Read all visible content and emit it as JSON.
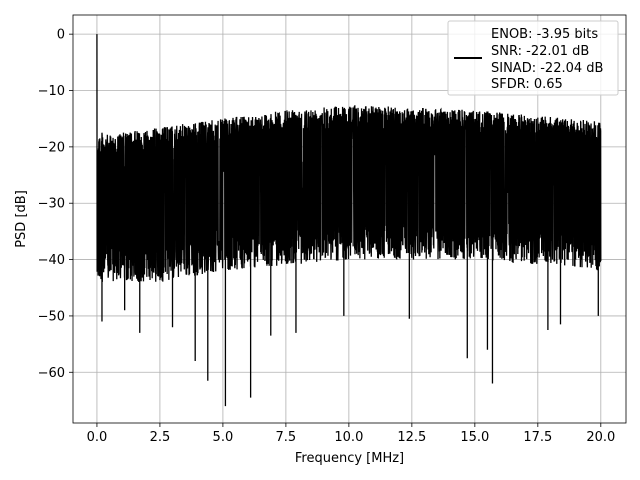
{
  "chart_data": {
    "type": "line",
    "title": "",
    "xlabel": "Frequency [MHz]",
    "ylabel": "PSD [dB]",
    "xlim": [
      -0.95,
      21.0
    ],
    "ylim": [
      -69.0,
      3.4
    ],
    "xticks": [
      0.0,
      2.5,
      5.0,
      7.5,
      10.0,
      12.5,
      15.0,
      17.5,
      20.0
    ],
    "xtick_labels": [
      "0.0",
      "2.5",
      "5.0",
      "7.5",
      "10.0",
      "12.5",
      "15.0",
      "17.5",
      "20.0"
    ],
    "yticks": [
      0,
      -10,
      -20,
      -30,
      -40,
      -50,
      -60
    ],
    "ytick_labels": [
      "0",
      "−10",
      "−20",
      "−30",
      "−40",
      "−50",
      "−60"
    ],
    "grid": true,
    "legend_position": "top-right",
    "legend_lines": [
      "ENOB: -3.95 bits",
      "SNR: -22.01 dB",
      "SINAD: -22.04 dB",
      "SFDR: 0.65"
    ],
    "line_color": "#000000",
    "series": [
      {
        "x_range": [
          0.0,
          20.0
        ],
        "points": 3000,
        "peak": {
          "x": 0.0,
          "y": 0.0
        },
        "upper_envelope_dB": [
          [
            0.0,
            -17
          ],
          [
            0.5,
            -18
          ],
          [
            1.0,
            -17.5
          ],
          [
            2.5,
            -16.5
          ],
          [
            5.0,
            -15
          ],
          [
            7.5,
            -13.5
          ],
          [
            10.0,
            -12.5
          ],
          [
            12.5,
            -13
          ],
          [
            15.0,
            -13.5
          ],
          [
            17.5,
            -14.5
          ],
          [
            20.0,
            -15.5
          ]
        ],
        "lower_envelope_dB": [
          [
            0.0,
            -44
          ],
          [
            2.5,
            -44
          ],
          [
            5.0,
            -42
          ],
          [
            10.0,
            -40
          ],
          [
            15.0,
            -40
          ],
          [
            20.0,
            -42
          ]
        ],
        "deep_dips": [
          [
            0.2,
            -51
          ],
          [
            1.1,
            -49
          ],
          [
            1.7,
            -53
          ],
          [
            3.0,
            -52
          ],
          [
            3.9,
            -58
          ],
          [
            4.4,
            -61.5
          ],
          [
            5.1,
            -66
          ],
          [
            6.1,
            -64.5
          ],
          [
            6.9,
            -53.5
          ],
          [
            7.9,
            -53
          ],
          [
            9.8,
            -50
          ],
          [
            12.4,
            -50.5
          ],
          [
            14.7,
            -57.5
          ],
          [
            15.5,
            -56
          ],
          [
            15.7,
            -62
          ],
          [
            17.9,
            -52.5
          ],
          [
            18.4,
            -51.5
          ],
          [
            19.9,
            -50
          ]
        ]
      }
    ]
  }
}
